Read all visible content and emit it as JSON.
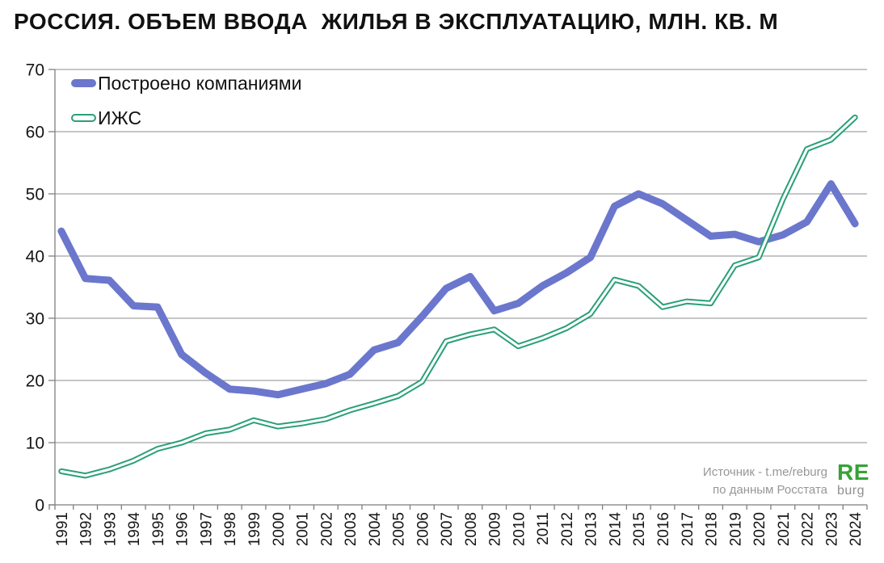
{
  "title": "РОССИЯ. ОБЪЕМ ВВОДА  ЖИЛЬЯ В ЭКСПЛУАТАЦИЮ, МЛН. КВ. М",
  "legend": {
    "companies": "Построено компаниями",
    "izhs": "ИЖС"
  },
  "source": {
    "line1": "Источник - t.me/reburg",
    "line2": "по данным Росстата"
  },
  "logo": {
    "top": "RE",
    "bottom": "burg"
  },
  "colors": {
    "companies_line": "#6b77cd",
    "izhs_line": "#2aa076",
    "grid": "#8c8c8c",
    "axis": "#7f7f7f",
    "logo_green": "#35a335",
    "source_gray": "#979797"
  },
  "chart_data": {
    "type": "line",
    "title": "РОССИЯ. ОБЪЕМ ВВОДА ЖИЛЬЯ В ЭКСПЛУАТАЦИЮ, МЛН. КВ. М",
    "categories": [
      "1991",
      "1992",
      "1993",
      "1994",
      "1995",
      "1996",
      "1997",
      "1998",
      "1999",
      "2000",
      "2001",
      "2002",
      "2003",
      "2004",
      "2005",
      "2006",
      "2007",
      "2008",
      "2009",
      "2010",
      "2011",
      "2012",
      "2013",
      "2014",
      "2015",
      "2016",
      "2017",
      "2018",
      "2019",
      "2020",
      "2021",
      "2022",
      "2023",
      "2024"
    ],
    "series": [
      {
        "name": "Построено компаниями",
        "color": "#6b77cd",
        "style": "solid",
        "values": [
          44.0,
          36.4,
          36.1,
          32.0,
          31.8,
          24.2,
          21.2,
          18.6,
          18.3,
          17.7,
          18.6,
          19.5,
          21.0,
          24.9,
          26.1,
          30.3,
          34.8,
          36.7,
          31.2,
          32.4,
          35.2,
          37.3,
          39.8,
          48.0,
          50.0,
          48.4,
          45.8,
          43.2,
          43.5,
          42.3,
          43.4,
          45.5,
          51.6,
          45.2
        ]
      },
      {
        "name": "ИЖС",
        "color": "#2aa076",
        "style": "double",
        "values": [
          5.4,
          4.7,
          5.7,
          7.1,
          9.0,
          10.0,
          11.5,
          12.1,
          13.6,
          12.6,
          13.1,
          13.8,
          15.2,
          16.3,
          17.5,
          19.8,
          26.3,
          27.4,
          28.2,
          25.5,
          26.8,
          28.4,
          30.7,
          36.2,
          35.2,
          31.8,
          32.7,
          32.4,
          38.5,
          39.8,
          49.1,
          57.2,
          58.7,
          62.3
        ]
      }
    ],
    "ylim": [
      0,
      70
    ],
    "y_ticks": [
      0,
      10,
      20,
      30,
      40,
      50,
      60,
      70
    ],
    "xlabel": "",
    "ylabel": "",
    "grid": true,
    "legend_position": "top-left",
    "x_label_rotation": -90
  }
}
